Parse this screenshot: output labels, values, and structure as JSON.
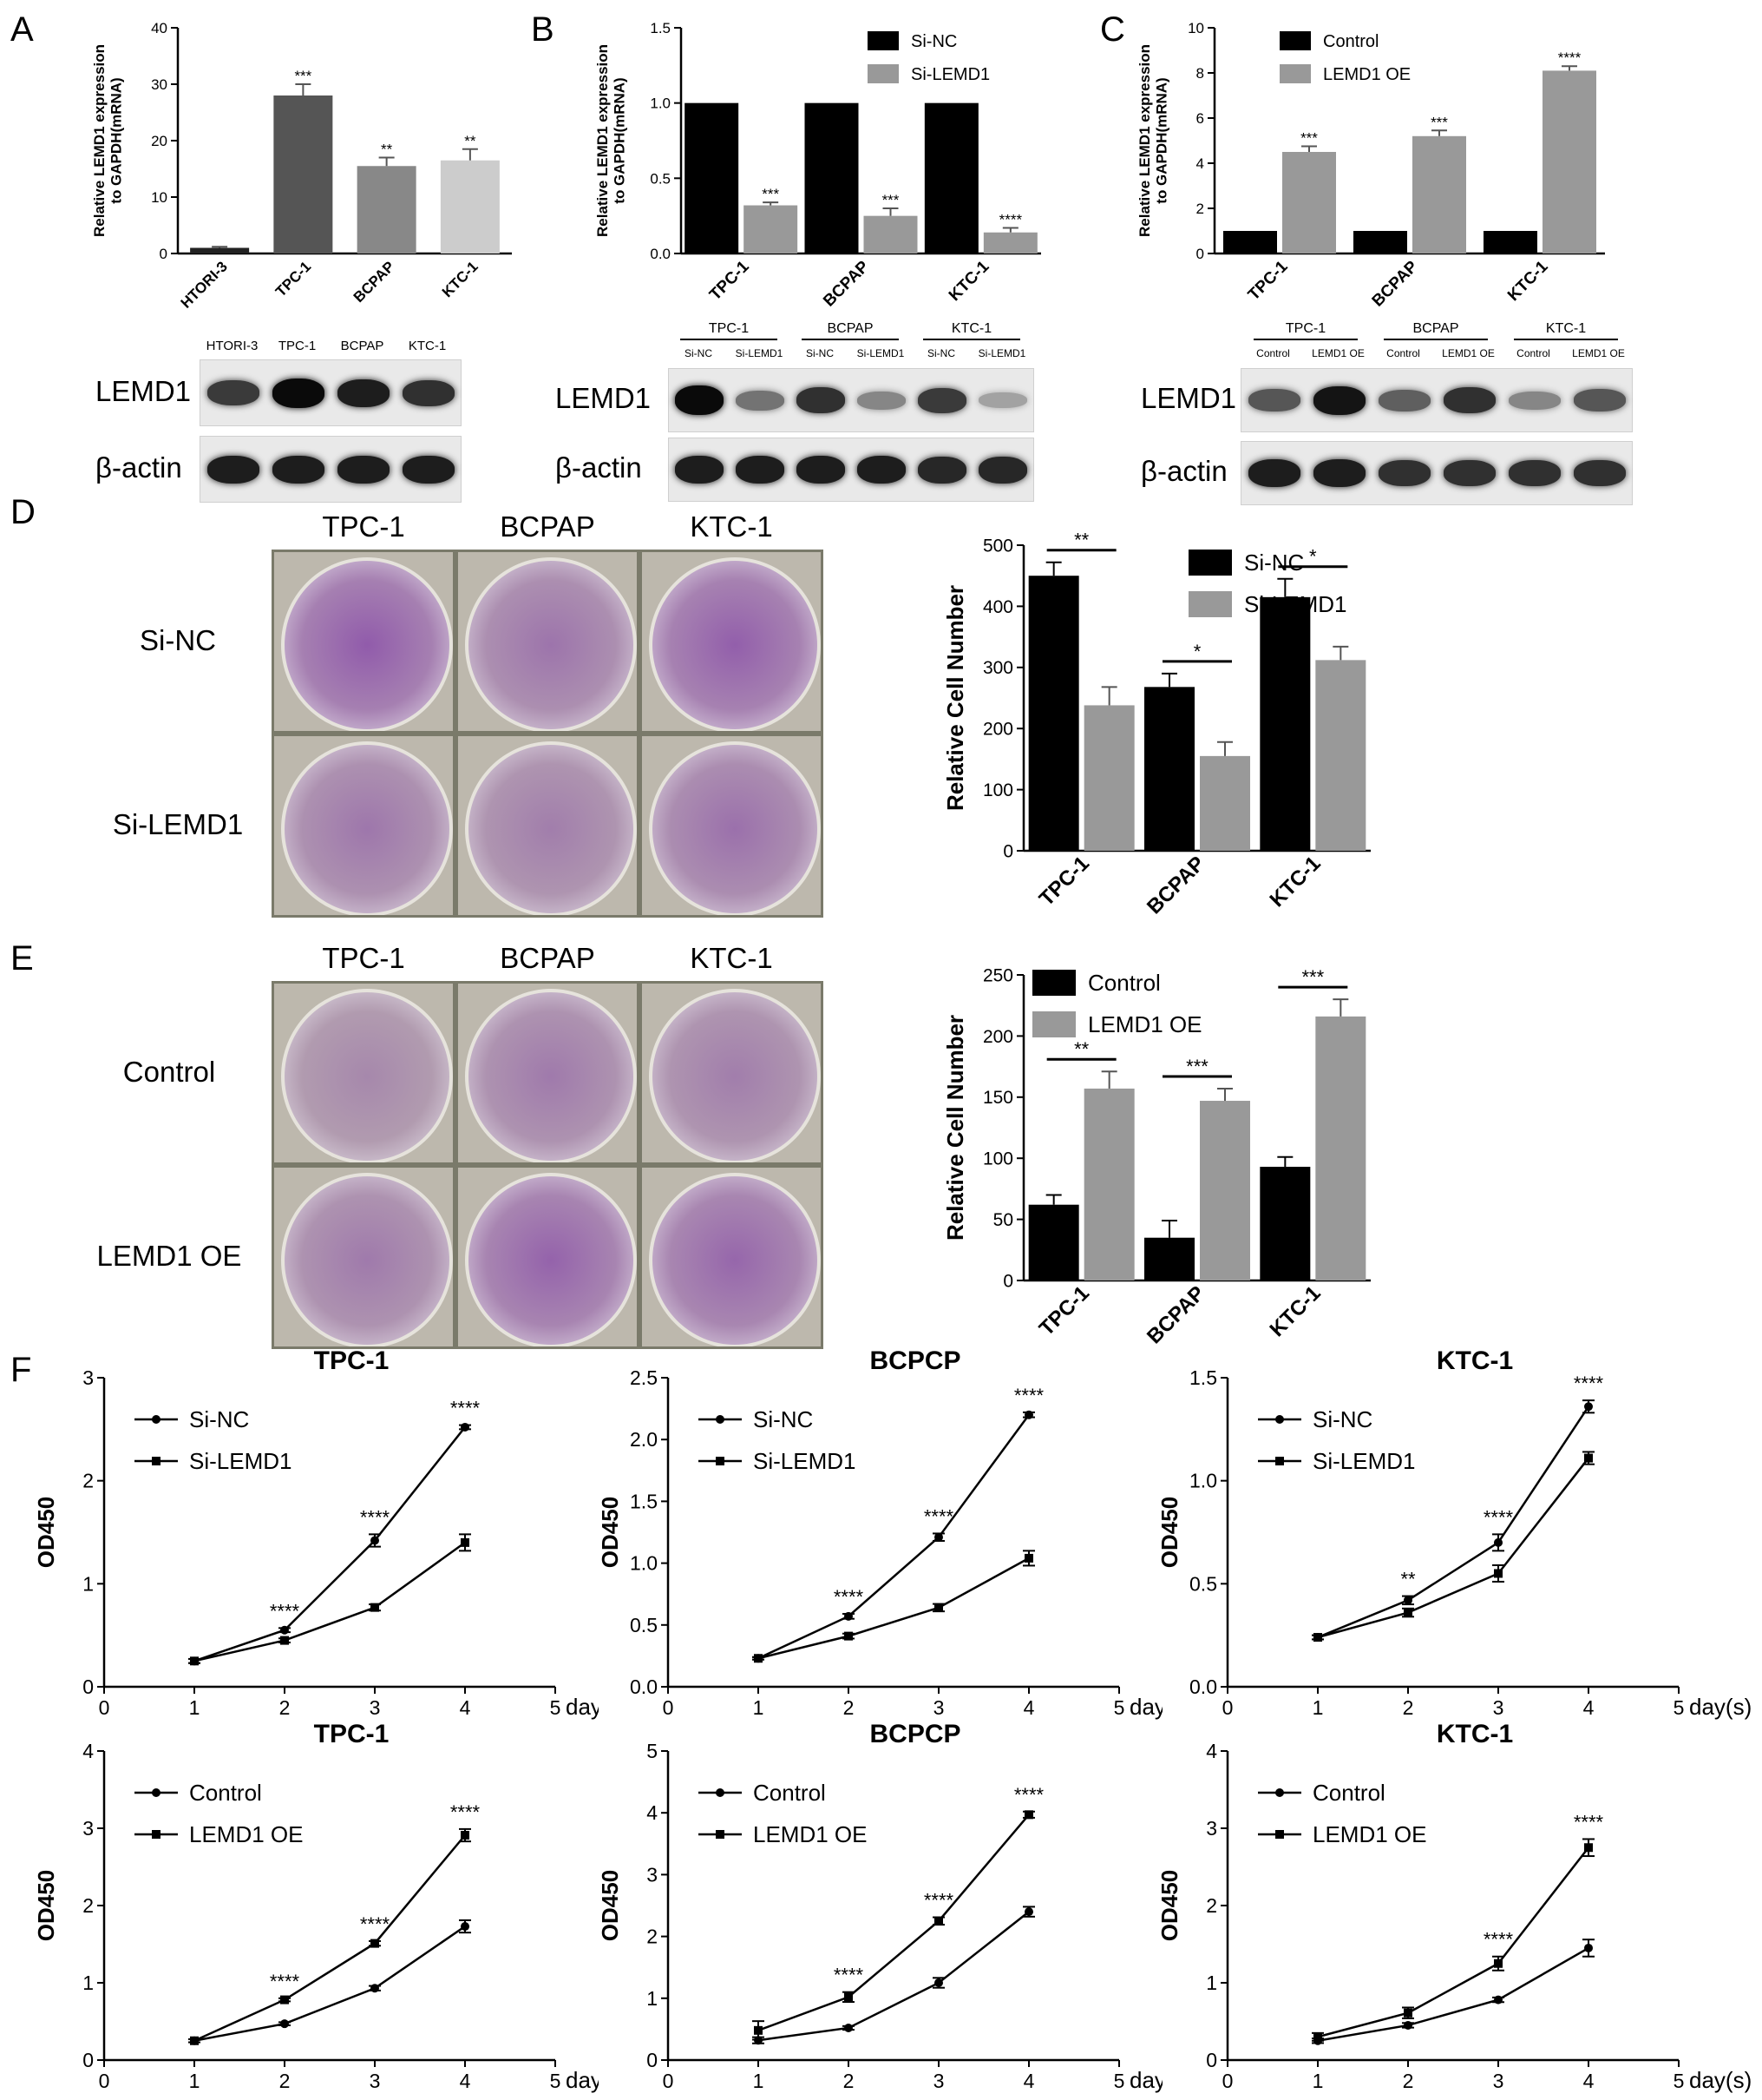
{
  "panel_labels": [
    "A",
    "B",
    "C",
    "D",
    "E",
    "F"
  ],
  "chart_data": [
    {
      "id": "A",
      "type": "bar",
      "ylabel": "Relative  LEMD1 expression\nto GAPDH(mRNA)",
      "categories": [
        "HTORI-3",
        "TPC-1",
        "BCPAP",
        "KTC-1"
      ],
      "series": [
        {
          "values": [
            1.0,
            28.0,
            15.5,
            16.5
          ],
          "errors": [
            0.2,
            2.0,
            1.5,
            2.0
          ],
          "colors": [
            "#222222",
            "#555555",
            "#888888",
            "#cccccc"
          ]
        }
      ],
      "annotations": [
        "",
        "***",
        "**",
        "**"
      ],
      "ylim": [
        0,
        40
      ],
      "yticks": [
        0,
        10,
        20,
        30,
        40
      ]
    },
    {
      "id": "B",
      "type": "bar",
      "ylabel": "Relative  LEMD1 expression\nto GAPDH(mRNA)",
      "categories": [
        "TPC-1",
        "BCPAP",
        "KTC-1"
      ],
      "series": [
        {
          "name": "Si-NC",
          "values": [
            1.0,
            1.0,
            1.0
          ],
          "errors": [
            0,
            0,
            0
          ],
          "color": "#000000"
        },
        {
          "name": "Si-LEMD1",
          "values": [
            0.32,
            0.25,
            0.14
          ],
          "errors": [
            0.02,
            0.05,
            0.03
          ],
          "color": "#999999"
        }
      ],
      "annotations": [
        "***",
        "***",
        "****"
      ],
      "ylim": [
        0,
        1.5
      ],
      "yticks": [
        "0.0",
        "0.5",
        "1.0",
        "1.5"
      ]
    },
    {
      "id": "C",
      "type": "bar",
      "ylabel": "Relative  LEMD1 expression\nto GAPDH(mRNA)",
      "categories": [
        "TPC-1",
        "BCPAP",
        "KTC-1"
      ],
      "series": [
        {
          "name": "Control",
          "values": [
            1.0,
            1.0,
            1.0
          ],
          "errors": [
            0,
            0,
            0
          ],
          "color": "#000000"
        },
        {
          "name": "LEMD1 OE",
          "values": [
            4.5,
            5.2,
            8.1
          ],
          "errors": [
            0.25,
            0.25,
            0.2
          ],
          "color": "#999999"
        }
      ],
      "annotations": [
        "***",
        "***",
        "****"
      ],
      "ylim": [
        0,
        10
      ],
      "yticks": [
        0,
        2,
        4,
        6,
        8,
        10
      ]
    },
    {
      "id": "D",
      "type": "bar",
      "ylabel": "Relative Cell Number",
      "categories": [
        "TPC-1",
        "BCPAP",
        "KTC-1"
      ],
      "series": [
        {
          "name": "Si-NC",
          "values": [
            450,
            268,
            415
          ],
          "errors": [
            22,
            22,
            30
          ],
          "color": "#000000"
        },
        {
          "name": "Si-LEMD1",
          "values": [
            238,
            155,
            312
          ],
          "errors": [
            30,
            23,
            22
          ],
          "color": "#999999"
        }
      ],
      "annotations": [
        "**",
        "*",
        "*"
      ],
      "ylim": [
        0,
        500
      ],
      "yticks": [
        0,
        100,
        200,
        300,
        400,
        500
      ]
    },
    {
      "id": "E",
      "type": "bar",
      "ylabel": "Relative Cell Number",
      "categories": [
        "TPC-1",
        "BCPAP",
        "KTC-1"
      ],
      "series": [
        {
          "name": "Control",
          "values": [
            62,
            35,
            93
          ],
          "errors": [
            8,
            14,
            8
          ],
          "color": "#000000"
        },
        {
          "name": "LEMD1 OE",
          "values": [
            157,
            147,
            216
          ],
          "errors": [
            14,
            10,
            14
          ],
          "color": "#999999"
        }
      ],
      "annotations": [
        "**",
        "***",
        "***"
      ],
      "ylim": [
        0,
        250
      ],
      "yticks": [
        0,
        50,
        100,
        150,
        200,
        250
      ]
    },
    {
      "id": "F1",
      "type": "line",
      "title": "TPC-1",
      "ylabel": "OD450",
      "xlabel": "day(s)",
      "x": [
        1,
        2,
        3,
        4
      ],
      "xlim": [
        0,
        5
      ],
      "ylim": [
        0,
        3
      ],
      "yticks": [
        0,
        1,
        2,
        3
      ],
      "series": [
        {
          "name": "Si-NC",
          "values": [
            0.25,
            0.55,
            1.42,
            2.52
          ],
          "errors": [
            0.02,
            0.02,
            0.06,
            0.02
          ]
        },
        {
          "name": "Si-LEMD1",
          "values": [
            0.25,
            0.45,
            0.77,
            1.4
          ],
          "errors": [
            0.02,
            0.02,
            0.03,
            0.08
          ]
        }
      ],
      "annotations": [
        "",
        "****",
        "****",
        "****"
      ]
    },
    {
      "id": "F2",
      "type": "line",
      "title": "BCPCP",
      "ylabel": "OD450",
      "xlabel": "day(s)",
      "x": [
        1,
        2,
        3,
        4
      ],
      "xlim": [
        0,
        5
      ],
      "ylim": [
        0,
        2.5
      ],
      "yticks": [
        "0.0",
        "0.5",
        "1.0",
        "1.5",
        "2.0",
        "2.5"
      ],
      "series": [
        {
          "name": "Si-NC",
          "values": [
            0.23,
            0.57,
            1.21,
            2.2
          ],
          "errors": [
            0.01,
            0.02,
            0.03,
            0.02
          ]
        },
        {
          "name": "Si-LEMD1",
          "values": [
            0.23,
            0.41,
            0.64,
            1.04
          ],
          "errors": [
            0.01,
            0.02,
            0.03,
            0.06
          ]
        }
      ],
      "annotations": [
        "",
        "****",
        "****",
        "****"
      ]
    },
    {
      "id": "F3",
      "type": "line",
      "title": "KTC-1",
      "ylabel": "OD450",
      "xlabel": "day(s)",
      "x": [
        1,
        2,
        3,
        4
      ],
      "xlim": [
        0,
        5
      ],
      "ylim": [
        0,
        1.5
      ],
      "yticks": [
        "0.0",
        "0.5",
        "1.0",
        "1.5"
      ],
      "series": [
        {
          "name": "Si-NC",
          "values": [
            0.24,
            0.42,
            0.7,
            1.36
          ],
          "errors": [
            0.01,
            0.02,
            0.04,
            0.03
          ]
        },
        {
          "name": "Si-LEMD1",
          "values": [
            0.24,
            0.36,
            0.55,
            1.11
          ],
          "errors": [
            0.01,
            0.02,
            0.04,
            0.03
          ]
        }
      ],
      "annotations": [
        "",
        "**",
        "****",
        "****"
      ]
    },
    {
      "id": "F4",
      "type": "line",
      "title": "TPC-1",
      "ylabel": "OD450",
      "xlabel": "day(s)",
      "x": [
        1,
        2,
        3,
        4
      ],
      "xlim": [
        0,
        5
      ],
      "ylim": [
        0,
        4
      ],
      "yticks": [
        0,
        1,
        2,
        3,
        4
      ],
      "series": [
        {
          "name": "Control",
          "values": [
            0.25,
            0.47,
            0.93,
            1.73
          ],
          "errors": [
            0.02,
            0.02,
            0.03,
            0.08
          ]
        },
        {
          "name": "LEMD1 OE",
          "values": [
            0.25,
            0.78,
            1.51,
            2.91
          ],
          "errors": [
            0.02,
            0.02,
            0.03,
            0.08
          ]
        }
      ],
      "annotations": [
        "",
        "****",
        "****",
        "****"
      ]
    },
    {
      "id": "F5",
      "type": "line",
      "title": "BCPCP",
      "ylabel": "OD450",
      "xlabel": "day(s)",
      "x": [
        1,
        2,
        3,
        4
      ],
      "xlim": [
        0,
        5
      ],
      "ylim": [
        0,
        5
      ],
      "yticks": [
        0,
        1,
        2,
        3,
        4,
        5
      ],
      "series": [
        {
          "name": "Control",
          "values": [
            0.32,
            0.52,
            1.25,
            2.4
          ],
          "errors": [
            0.05,
            0.03,
            0.08,
            0.08
          ]
        },
        {
          "name": "LEMD1 OE",
          "values": [
            0.48,
            1.02,
            2.25,
            3.97
          ],
          "errors": [
            0.15,
            0.08,
            0.06,
            0.05
          ]
        }
      ],
      "annotations": [
        "",
        "****",
        "****",
        "****"
      ]
    },
    {
      "id": "F6",
      "type": "line",
      "title": "KTC-1",
      "ylabel": "OD450",
      "xlabel": "day(s)",
      "x": [
        1,
        2,
        3,
        4
      ],
      "xlim": [
        0,
        5
      ],
      "ylim": [
        0,
        4
      ],
      "yticks": [
        0,
        1,
        2,
        3,
        4
      ],
      "series": [
        {
          "name": "Control",
          "values": [
            0.25,
            0.45,
            0.78,
            1.45
          ],
          "errors": [
            0.03,
            0.03,
            0.03,
            0.11
          ]
        },
        {
          "name": "LEMD1 OE",
          "values": [
            0.3,
            0.61,
            1.25,
            2.75
          ],
          "errors": [
            0.05,
            0.07,
            0.09,
            0.11
          ]
        }
      ],
      "annotations": [
        "",
        "",
        "****",
        "****"
      ]
    }
  ],
  "blots": {
    "A": {
      "lanes": [
        "HTORI-3",
        "TPC-1",
        "BCPAP",
        "KTC-1"
      ],
      "groups": [],
      "rows": [
        {
          "name": "LEMD1",
          "intensity": [
            0.75,
            1.0,
            0.9,
            0.8
          ]
        },
        {
          "name": "β-actin",
          "intensity": [
            0.9,
            0.9,
            0.9,
            0.9
          ]
        }
      ]
    },
    "B": {
      "lanes": [
        "Si-NC",
        "Si-LEMD1",
        "Si-NC",
        "Si-LEMD1",
        "Si-NC",
        "Si-LEMD1"
      ],
      "groups": [
        "TPC-1",
        "BCPAP",
        "KTC-1"
      ],
      "rows": [
        {
          "name": "LEMD1",
          "intensity": [
            1.0,
            0.45,
            0.8,
            0.35,
            0.75,
            0.2
          ]
        },
        {
          "name": "β-actin",
          "intensity": [
            0.9,
            0.9,
            0.9,
            0.9,
            0.85,
            0.85
          ]
        }
      ]
    },
    "C": {
      "lanes": [
        "Control",
        "LEMD1 OE",
        "Control",
        "LEMD1 OE",
        "Control",
        "LEMD1 OE"
      ],
      "groups": [
        "TPC-1",
        "BCPAP",
        "KTC-1"
      ],
      "rows": [
        {
          "name": "LEMD1",
          "intensity": [
            0.6,
            0.95,
            0.55,
            0.8,
            0.35,
            0.6
          ]
        },
        {
          "name": "β-actin",
          "intensity": [
            0.9,
            0.9,
            0.8,
            0.8,
            0.8,
            0.8
          ]
        }
      ]
    }
  },
  "colony_D": {
    "columns": [
      "TPC-1",
      "BCPAP",
      "KTC-1"
    ],
    "rows": [
      "Si-NC",
      "Si-LEMD1"
    ],
    "density": [
      [
        0.9,
        0.55,
        0.85
      ],
      [
        0.5,
        0.4,
        0.6
      ]
    ]
  },
  "colony_E": {
    "columns": [
      "TPC-1",
      "BCPAP",
      "KTC-1"
    ],
    "rows": [
      "Control",
      "LEMD1 OE"
    ],
    "density": [
      [
        0.25,
        0.45,
        0.4
      ],
      [
        0.45,
        0.8,
        0.75
      ]
    ]
  }
}
